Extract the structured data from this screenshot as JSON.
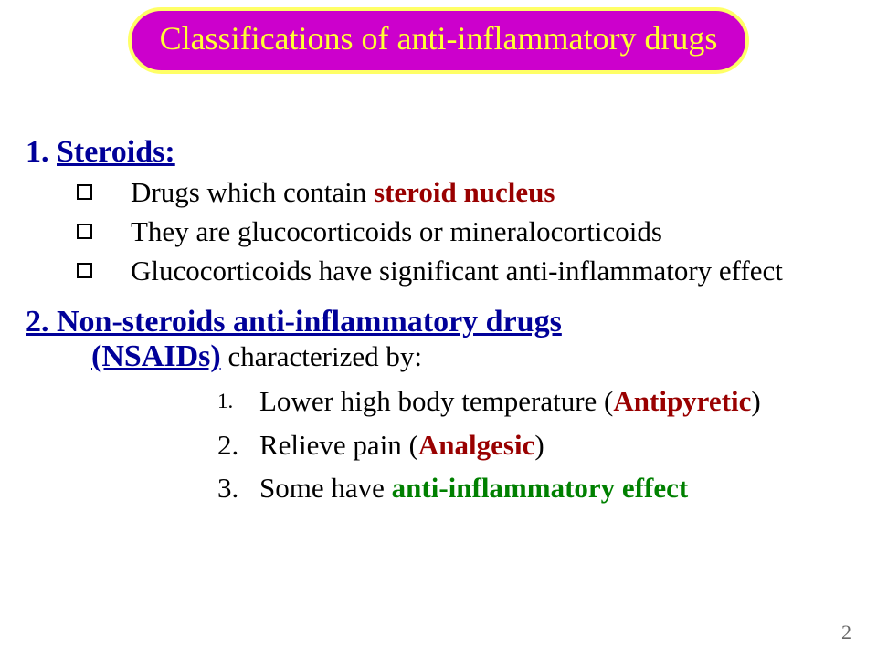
{
  "colors": {
    "title_bg": "#cc00cc",
    "title_border": "#ffff66",
    "title_text": "#ffff33",
    "heading_blue": "#000099",
    "emphasis_red": "#990000",
    "emphasis_green": "#008000",
    "body_text": "#000000",
    "page_bg": "#ffffff"
  },
  "typography": {
    "family": "Times New Roman",
    "title_fontsize": 36,
    "heading_fontsize": 34,
    "body_fontsize": 31
  },
  "title": "Classifications of anti-inflammatory drugs",
  "section1": {
    "number": "1.",
    "heading": "Steroids:",
    "bullets": [
      {
        "pre": "Drugs which contain ",
        "em": "steroid nucleus",
        "post": ""
      },
      {
        "pre": " They are glucocorticoids or mineralocorticoids",
        "em": "",
        "post": ""
      },
      {
        "pre": " Glucocorticoids have significant anti-inflammatory effect",
        "em": "",
        "post": ""
      }
    ]
  },
  "section2": {
    "heading_line1": "2. Non-steroids anti-inflammatory drugs",
    "heading_line2_u": "(NSAIDs)",
    "heading_line2_tail": " characterized by:",
    "items": [
      {
        "n": "1.",
        "small": true,
        "pre": "Lower high body temperature ",
        "paren_open": "(",
        "paren_label": "Antipyretic",
        "paren_close": ")",
        "green": ""
      },
      {
        "n": "2.",
        "small": false,
        "pre": " Relieve pain  ",
        "paren_open": "(",
        "paren_label": "Analgesic",
        "paren_close": ")",
        "green": ""
      },
      {
        "n": "3.",
        "small": false,
        "pre": " Some have ",
        "paren_open": "",
        "paren_label": "",
        "paren_close": "",
        "green": "anti-inflammatory effect"
      }
    ]
  },
  "page_number": "2"
}
